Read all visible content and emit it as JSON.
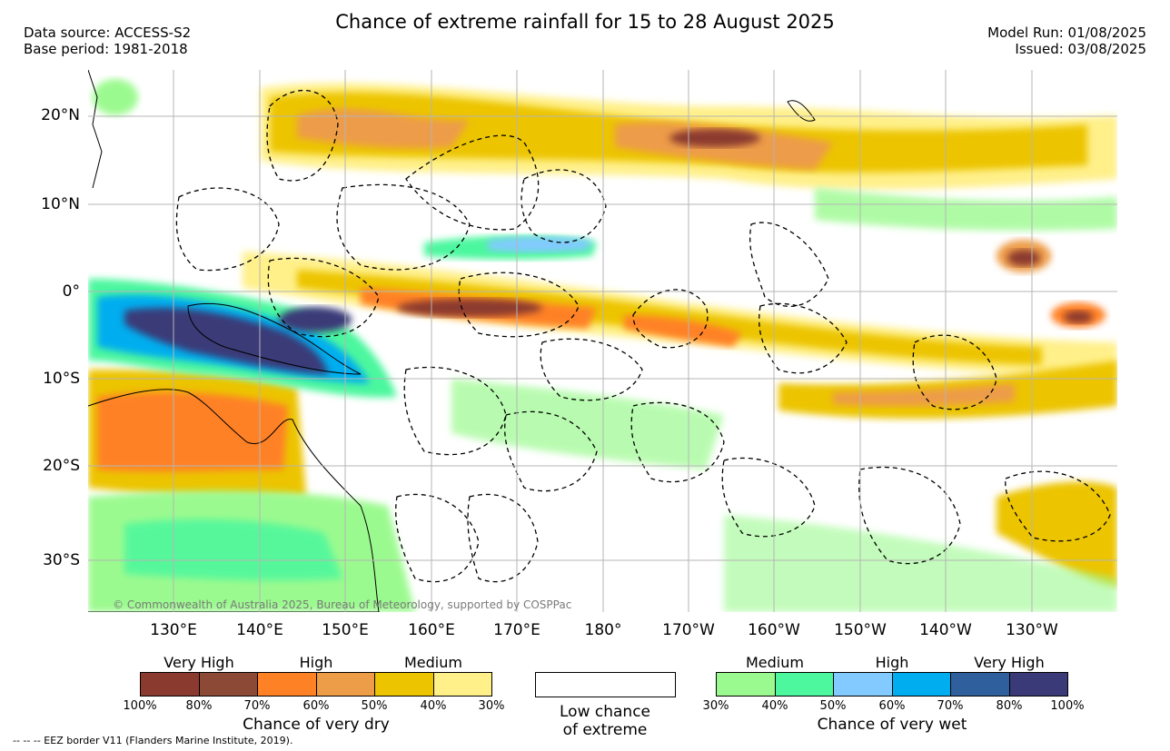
{
  "title": "Chance of extreme rainfall for 15 to 28 August 2025",
  "data_source": "Data source: ACCESS-S2",
  "base_period": "Base period: 1981-2018",
  "model_run": "Model Run: 01/08/2025",
  "issued": "Issued: 03/08/2025",
  "lat_labels": [
    "20°N",
    "10°N",
    "0°",
    "10°S",
    "20°S",
    "30°S"
  ],
  "lon_labels": [
    "130°E",
    "140°E",
    "150°E",
    "160°E",
    "170°E",
    "180°",
    "170°W",
    "160°W",
    "150°W",
    "140°W",
    "130°W"
  ],
  "copyright": "© Commonwealth of Australia 2025, Bureau of Meteorology, supported by COSPPac",
  "legend_dry": {
    "levels": [
      "Very High",
      "High",
      "Medium"
    ],
    "percents": [
      "100%",
      "80%",
      "70%",
      "60%",
      "50%",
      "40%",
      "30%"
    ],
    "colors": [
      "#8b3a2f",
      "#8c4a36",
      "#ff8125",
      "#ed9c48",
      "#ecc400",
      "#fff08a"
    ],
    "title": "Chance of very dry"
  },
  "legend_low": {
    "line1": "Low chance",
    "line2": "of extreme"
  },
  "legend_wet": {
    "levels": [
      "Medium",
      "High",
      "Very High"
    ],
    "percents": [
      "30%",
      "40%",
      "50%",
      "60%",
      "70%",
      "80%",
      "100%"
    ],
    "colors": [
      "#9bfa8f",
      "#4cf79e",
      "#82caff",
      "#00aeef",
      "#2f5f9c",
      "#3b3a78"
    ],
    "title": "Chance of very wet"
  },
  "eez_note": "--  --  -- EEZ border V11 (Flanders Marine Institute, 2019)."
}
